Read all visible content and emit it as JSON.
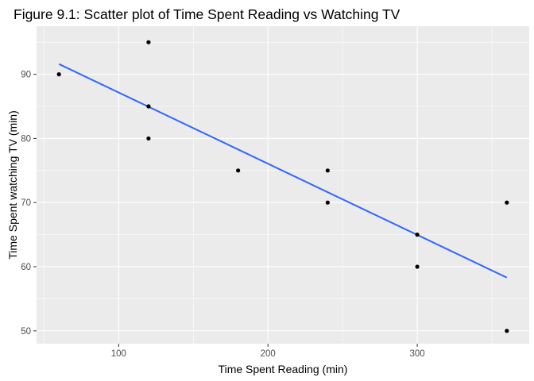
{
  "chart_data": {
    "type": "scatter",
    "title": "Figure 9.1: Scatter plot of Time Spent Reading vs Watching TV",
    "xlabel": "Time Spent Reading (min)",
    "ylabel": "Time Spent watching TV (min)",
    "xlim": [
      45,
      375
    ],
    "ylim": [
      48,
      97.5
    ],
    "x_ticks": [
      100,
      200,
      300
    ],
    "y_ticks": [
      50,
      60,
      70,
      80,
      90
    ],
    "grid": true,
    "legend": "none",
    "points": [
      {
        "x": 60,
        "y": 90
      },
      {
        "x": 120,
        "y": 95
      },
      {
        "x": 120,
        "y": 85
      },
      {
        "x": 120,
        "y": 80
      },
      {
        "x": 180,
        "y": 75
      },
      {
        "x": 240,
        "y": 75
      },
      {
        "x": 240,
        "y": 70
      },
      {
        "x": 300,
        "y": 65
      },
      {
        "x": 300,
        "y": 60
      },
      {
        "x": 360,
        "y": 70
      },
      {
        "x": 360,
        "y": 50
      }
    ],
    "trend_line": {
      "type": "linear",
      "from": {
        "x": 60,
        "y": 91.6
      },
      "to": {
        "x": 360,
        "y": 58.3
      }
    },
    "colors": {
      "panel_background": "#ebebeb",
      "grid": "#ffffff",
      "point": "#000000",
      "trend_line": "#3366ff",
      "tick_label": "#4d4d4d"
    }
  }
}
